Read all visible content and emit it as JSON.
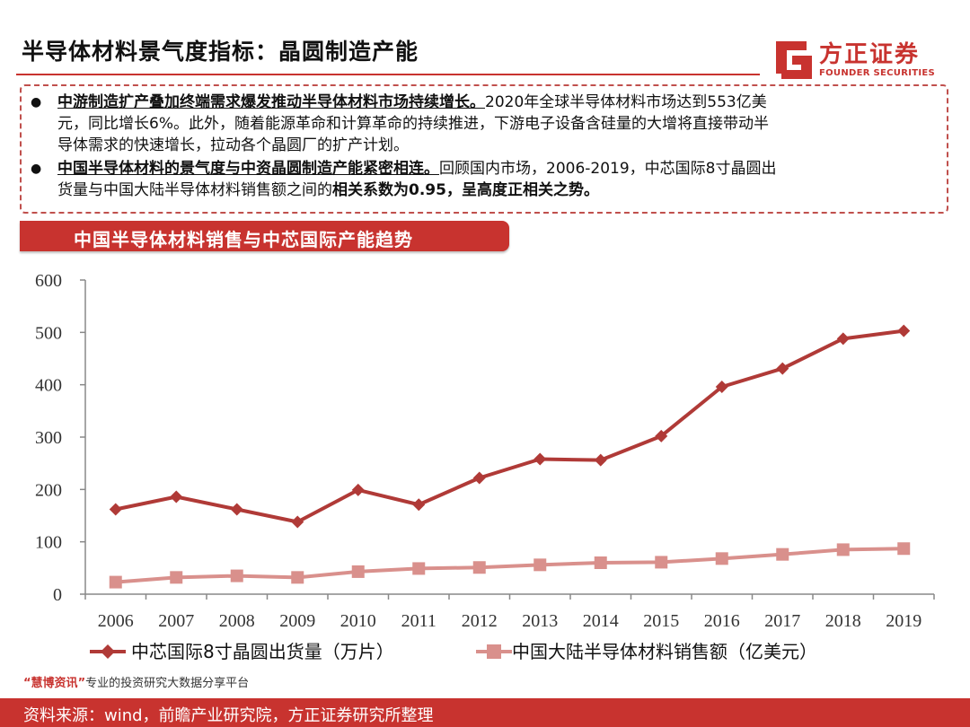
{
  "header": {
    "title": "半导体材料景气度指标：晶圆制造产能",
    "logo_cn": "方正证券",
    "logo_en": "FOUNDER SECURITIES"
  },
  "notes": {
    "p1_bold": "中游制造扩产叠加终端需求爆发推动半导体材料市场持续增长。",
    "p1_line1_rest": "2020年全球半导体材料市场达到553亿美",
    "p1_line2": "元，同比增长6%。此外，随着能源革命和计算革命的持续推进，下游电子设备含硅量的大增将直接带动半",
    "p1_line3": "导体需求的快速增长，拉动各个晶圆厂的扩产计划。",
    "p2_bold": "中国半导体材料的景气度与中资晶圆制造产能紧密相连。",
    "p2_line1_rest": "回顾国内市场，2006-2019，中芯国际8寸晶圆出",
    "p2_line2_start": "货量与中国大陆半导体材料销售额之间的",
    "p2_line2_bold": "相关系数为0.95，呈高度正相关之势。"
  },
  "chart_banner": "中国半导体材料销售与中芯国际产能趋势",
  "chart_data": {
    "type": "line",
    "x": [
      "2006",
      "2007",
      "2008",
      "2009",
      "2010",
      "2011",
      "2012",
      "2013",
      "2014",
      "2015",
      "2016",
      "2017",
      "2018",
      "2019"
    ],
    "ylim": [
      0,
      600
    ],
    "yticks": [
      0,
      100,
      200,
      300,
      400,
      500,
      600
    ],
    "grid": false,
    "legend_position": "bottom",
    "series": [
      {
        "name": "中芯国际8寸晶圆出货量（万片）",
        "color": "#b03a37",
        "marker": "diamond",
        "values": [
          162,
          186,
          162,
          138,
          199,
          171,
          222,
          258,
          256,
          302,
          396,
          431,
          488,
          503
        ]
      },
      {
        "name": "中国大陆半导体材料销售额（亿美元）",
        "color": "#d9908c",
        "marker": "square",
        "values": [
          23,
          32,
          35,
          32,
          43,
          49,
          51,
          56,
          60,
          61,
          68,
          76,
          85,
          87
        ]
      }
    ]
  },
  "watermark": {
    "quote_open": "“",
    "brand": "慧博资讯",
    "quote_close": "”",
    "text": "专业的投资研究大数据分享平台"
  },
  "footer": "资料来源：wind，前瞻产业研究院，方正证券研究所整理"
}
